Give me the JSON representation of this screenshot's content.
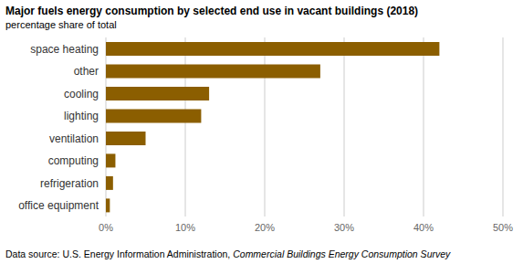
{
  "chart_data": {
    "type": "bar",
    "orientation": "horizontal",
    "title": "Major fuels energy consumption by selected end use in vacant buildings (2018)",
    "subtitle": "percentage share of total",
    "annotations": [
      "Data source: U.S. Energy Information Administration,",
      "Commercial Buildings Energy Consumption Survey"
    ],
    "categories": [
      "space heating",
      "other",
      "cooling",
      "lighting",
      "ventilation",
      "computing",
      "refrigeration",
      "office equipment"
    ],
    "values": [
      42,
      27,
      13,
      12,
      5,
      1.2,
      0.9,
      0.5
    ],
    "color": "#8B5E00",
    "xlim": [
      0,
      50
    ],
    "xticks": [
      {
        "value": 0,
        "label": "0%"
      },
      {
        "value": 10,
        "label": "10%"
      },
      {
        "value": 20,
        "label": "20%"
      },
      {
        "value": 30,
        "label": "30%"
      },
      {
        "value": 40,
        "label": "40%"
      },
      {
        "value": 50,
        "label": "50%"
      }
    ],
    "grid": true
  }
}
